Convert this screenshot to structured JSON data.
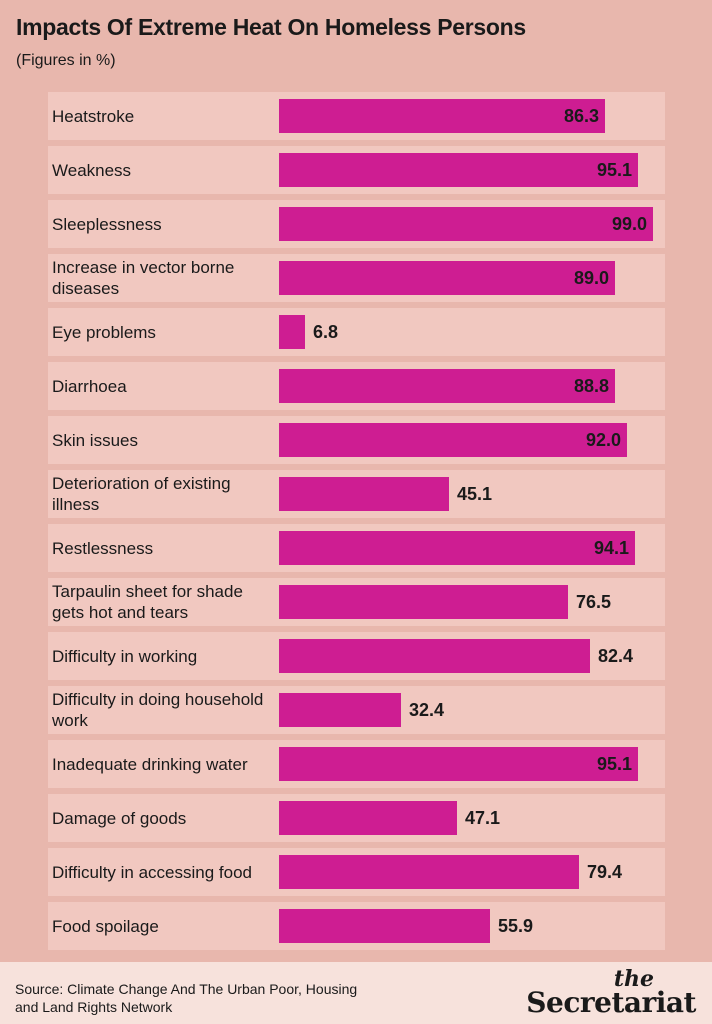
{
  "header": {
    "title": "Impacts Of Extreme Heat On Homeless Persons",
    "subtitle": "(Figures in %)"
  },
  "chart_data": {
    "type": "bar",
    "orientation": "horizontal",
    "title": "Impacts Of Extreme Heat On Homeless Persons",
    "subtitle": "(Figures in %)",
    "xlim": [
      0,
      100
    ],
    "grid": false,
    "categories": [
      "Heatstroke",
      "Weakness",
      "Sleeplessness",
      "Increase in vector borne diseases",
      "Eye problems",
      "Diarrhoea",
      "Skin issues",
      "Deterioration of existing illness",
      "Restlessness",
      "Tarpaulin sheet for shade gets hot and tears",
      "Difficulty in working",
      "Difficulty in doing household work",
      "Inadequate drinking water",
      "Damage of goods",
      "Difficulty in accessing food",
      "Food spoilage"
    ],
    "values": [
      86.3,
      95.1,
      99.0,
      89.0,
      6.8,
      88.8,
      92.0,
      45.1,
      94.1,
      76.5,
      82.4,
      32.4,
      95.1,
      47.1,
      79.4,
      55.9
    ],
    "value_labels": [
      "86.3",
      "95.1",
      "99.0",
      "89.0",
      "6.8",
      "88.8",
      "92.0",
      "45.1",
      "94.1",
      "76.5",
      "82.4",
      "32.4",
      "95.1",
      "47.1",
      "79.4",
      "55.9"
    ],
    "colors": {
      "bar": "#ce1d92",
      "row_background": "#f1c8c0",
      "page_background": "#e8b7ad"
    }
  },
  "footer": {
    "source": "Source: Climate Change And The Urban Poor, Housing and Land Rights Network",
    "logo_the": "the",
    "logo_name": "Secretariat"
  }
}
